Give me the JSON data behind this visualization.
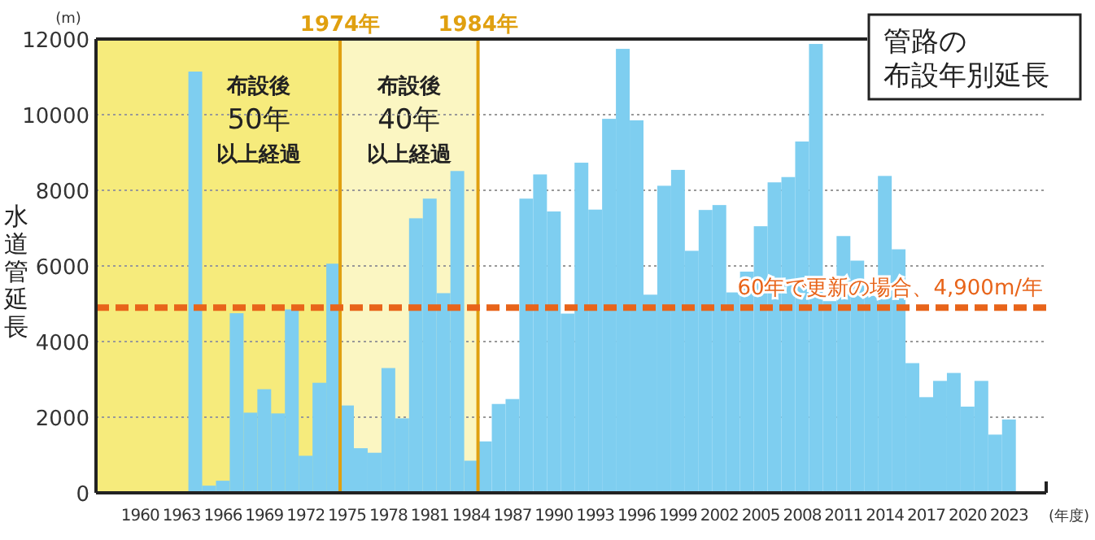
{
  "chart_data": {
    "type": "bar",
    "title": "管路の布設年別延長",
    "ylabel": "水道管延長",
    "xlabel": "(年度)",
    "annotations": [
      "(m)"
    ],
    "x": [
      1964,
      1965,
      1966,
      1967,
      1968,
      1969,
      1970,
      1971,
      1972,
      1973,
      1974,
      1975,
      1976,
      1977,
      1978,
      1979,
      1980,
      1981,
      1982,
      1983,
      1984,
      1985,
      1986,
      1987,
      1988,
      1989,
      1990,
      1991,
      1992,
      1993,
      1994,
      1995,
      1996,
      1997,
      1998,
      1999,
      2000,
      2001,
      2002,
      2003,
      2004,
      2005,
      2006,
      2007,
      2008,
      2009,
      2010,
      2011,
      2012,
      2013,
      2014,
      2015,
      2016,
      2017,
      2018,
      2019,
      2020,
      2021,
      2022,
      2023
    ],
    "values": [
      11140,
      190,
      320,
      4750,
      2120,
      2740,
      2100,
      4850,
      980,
      2910,
      6060,
      2310,
      1180,
      1060,
      3300,
      1970,
      7260,
      7780,
      5280,
      8510,
      850,
      1360,
      2350,
      2480,
      7780,
      8420,
      7440,
      4740,
      8730,
      7490,
      9890,
      11740,
      9850,
      5240,
      8120,
      8540,
      6400,
      7480,
      7610,
      5300,
      5850,
      7050,
      8210,
      8350,
      9290,
      11870,
      5070,
      6790,
      6140,
      5210,
      8380,
      6440,
      3430,
      2530,
      2960,
      3170,
      2280,
      2960,
      1540,
      1940
    ],
    "color": "#7ecef0",
    "xlim": [
      1956.8,
      2025.7
    ],
    "xticks": [
      1960,
      1963,
      1966,
      1969,
      1972,
      1975,
      1978,
      1981,
      1984,
      1987,
      1990,
      1993,
      1996,
      1999,
      2002,
      2005,
      2008,
      2011,
      2014,
      2017,
      2020,
      2023
    ],
    "ylim": [
      0,
      12000
    ],
    "yticks": [
      0,
      2000,
      4000,
      6000,
      8000,
      10000,
      12000
    ],
    "grid": "y",
    "bands": [
      {
        "axis": "x",
        "from": 1956.8,
        "to": 1974.5,
        "label": "布設後50年以上経過",
        "color": "#f6eb7c"
      },
      {
        "axis": "x",
        "from": 1974.5,
        "to": 1984.5,
        "label": "布設後40年以上経過",
        "color": "#fbf6c2"
      }
    ],
    "ref_lines": [
      {
        "axis": "x",
        "value": 1974.5,
        "label": "1974年",
        "color": "#e0a010",
        "line_style": "solid"
      },
      {
        "axis": "x",
        "value": 1984.5,
        "label": "1984年",
        "color": "#e0a010",
        "line_style": "solid"
      },
      {
        "axis": "y",
        "value": 4900,
        "label": "60年で更新の場合、4,900m/年",
        "color": "#e8641a",
        "line_style": "dashed"
      }
    ]
  }
}
